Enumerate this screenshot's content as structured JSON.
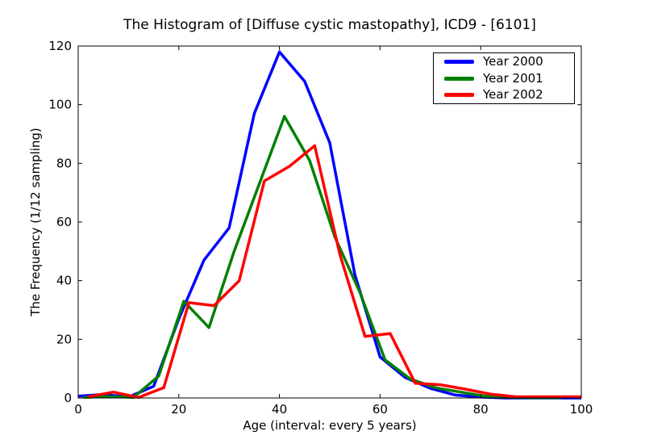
{
  "chart_data": {
    "type": "line",
    "title": "The Histogram of [Diffuse cystic mastopathy], ICD9 - [6101]",
    "xlabel": "Age (interval: every 5 years)",
    "ylabel": "The Frequency (1/12 sampling)",
    "xlim": [
      0,
      100
    ],
    "ylim": [
      0,
      120
    ],
    "xticks": [
      0,
      20,
      40,
      60,
      80,
      100
    ],
    "yticks": [
      0,
      20,
      40,
      60,
      80,
      100,
      120
    ],
    "grid": false,
    "legend_position": "upper right",
    "background_color": "#ffffff",
    "axis_color": "#000000",
    "series": [
      {
        "name": "Year 2000",
        "color": "#0000ff",
        "x": [
          0,
          5,
          10,
          15,
          20,
          25,
          30,
          35,
          40,
          45,
          50,
          55,
          60,
          65,
          70,
          75,
          80,
          85,
          90,
          95,
          100
        ],
        "y": [
          0.6,
          1.2,
          0.3,
          4,
          27,
          47,
          58,
          97,
          118,
          108,
          87,
          42,
          14,
          7,
          3.3,
          1,
          0.3,
          0,
          0,
          0,
          0
        ]
      },
      {
        "name": "Year 2001",
        "color": "#008000",
        "x": [
          1,
          6,
          11,
          16,
          21,
          26,
          31,
          36,
          41,
          46,
          51,
          56,
          61,
          66,
          71,
          76,
          81,
          86,
          91,
          96
        ],
        "y": [
          0.2,
          0.5,
          0.2,
          7.5,
          33,
          24,
          50,
          73,
          96,
          81,
          55,
          36,
          13,
          6.5,
          3.5,
          2,
          0.6,
          0.2,
          0.1,
          0.1
        ]
      },
      {
        "name": "Year 2002",
        "color": "#ff0000",
        "x": [
          2,
          7,
          12,
          17,
          22,
          27,
          32,
          37,
          42,
          47,
          52,
          57,
          62,
          67,
          72,
          77,
          82,
          87,
          92,
          97,
          100
        ],
        "y": [
          0.4,
          2,
          0.2,
          3.5,
          32.5,
          31.5,
          40,
          74,
          79,
          86,
          49,
          21,
          22,
          5,
          4.5,
          3,
          1.3,
          0.4,
          0.4,
          0.4,
          0.4
        ]
      }
    ]
  }
}
